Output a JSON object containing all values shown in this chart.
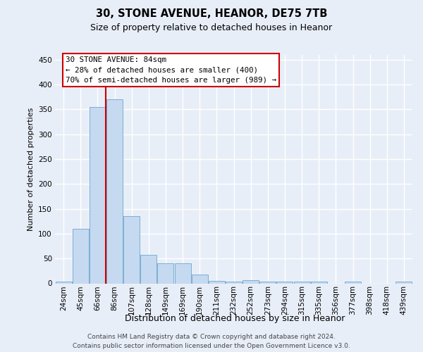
{
  "title1": "30, STONE AVENUE, HEANOR, DE75 7TB",
  "title2": "Size of property relative to detached houses in Heanor",
  "xlabel": "Distribution of detached houses by size in Heanor",
  "ylabel": "Number of detached properties",
  "categories": [
    "24sqm",
    "45sqm",
    "66sqm",
    "86sqm",
    "107sqm",
    "128sqm",
    "149sqm",
    "169sqm",
    "190sqm",
    "211sqm",
    "232sqm",
    "252sqm",
    "273sqm",
    "294sqm",
    "315sqm",
    "335sqm",
    "356sqm",
    "377sqm",
    "398sqm",
    "418sqm",
    "439sqm"
  ],
  "values": [
    3,
    110,
    355,
    370,
    135,
    57,
    40,
    40,
    18,
    5,
    3,
    7,
    3,
    3,
    3,
    3,
    0,
    3,
    0,
    0,
    3
  ],
  "bar_color": "#c5d9f0",
  "bar_edge_color": "#7bafd4",
  "annotation_line1": "30 STONE AVENUE: 84sqm",
  "annotation_line2": "← 28% of detached houses are smaller (400)",
  "annotation_line3": "70% of semi-detached houses are larger (989) →",
  "vline_color": "#cc0000",
  "box_edge_color": "#cc0000",
  "ylim_max": 460,
  "yticks": [
    0,
    50,
    100,
    150,
    200,
    250,
    300,
    350,
    400,
    450
  ],
  "footer1": "Contains HM Land Registry data © Crown copyright and database right 2024.",
  "footer2": "Contains public sector information licensed under the Open Government Licence v3.0.",
  "bg_color": "#e8eef8",
  "grid_color": "#ffffff",
  "title1_fontsize": 10.5,
  "title2_fontsize": 9,
  "ylabel_fontsize": 8,
  "xlabel_fontsize": 9,
  "tick_fontsize": 7.5,
  "footer_fontsize": 6.5,
  "ann_fontsize": 7.8,
  "vline_x_index": 2.5
}
